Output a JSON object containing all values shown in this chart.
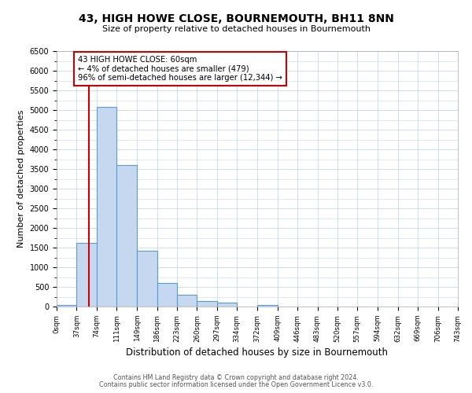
{
  "title": "43, HIGH HOWE CLOSE, BOURNEMOUTH, BH11 8NN",
  "subtitle": "Size of property relative to detached houses in Bournemouth",
  "xlabel": "Distribution of detached houses by size in Bournemouth",
  "ylabel": "Number of detached properties",
  "bin_edges": [
    0,
    37,
    74,
    111,
    149,
    186,
    223,
    260,
    297,
    334,
    372,
    409,
    446,
    483,
    520,
    557,
    594,
    632,
    669,
    706,
    743
  ],
  "bar_heights": [
    50,
    1620,
    5080,
    3600,
    1420,
    610,
    300,
    150,
    100,
    0,
    50,
    0,
    0,
    0,
    0,
    0,
    0,
    0,
    0,
    0
  ],
  "bar_color": "#c5d8f0",
  "bar_edge_color": "#5b9bd5",
  "property_line_x": 60,
  "property_line_color": "#cc0000",
  "annotation_line1": "43 HIGH HOWE CLOSE: 60sqm",
  "annotation_line2": "← 4% of detached houses are smaller (479)",
  "annotation_line3": "96% of semi-detached houses are larger (12,344) →",
  "annotation_box_color": "#cc0000",
  "ylim": [
    0,
    6500
  ],
  "yticks": [
    0,
    500,
    1000,
    1500,
    2000,
    2500,
    3000,
    3500,
    4000,
    4500,
    5000,
    5500,
    6000,
    6500
  ],
  "tick_labels": [
    "0sqm",
    "37sqm",
    "74sqm",
    "111sqm",
    "149sqm",
    "186sqm",
    "223sqm",
    "260sqm",
    "297sqm",
    "334sqm",
    "372sqm",
    "409sqm",
    "446sqm",
    "483sqm",
    "520sqm",
    "557sqm",
    "594sqm",
    "632sqm",
    "669sqm",
    "706sqm",
    "743sqm"
  ],
  "footer_line1": "Contains HM Land Registry data © Crown copyright and database right 2024.",
  "footer_line2": "Contains public sector information licensed under the Open Government Licence v3.0.",
  "background_color": "#ffffff",
  "grid_color": "#c8d8ea"
}
